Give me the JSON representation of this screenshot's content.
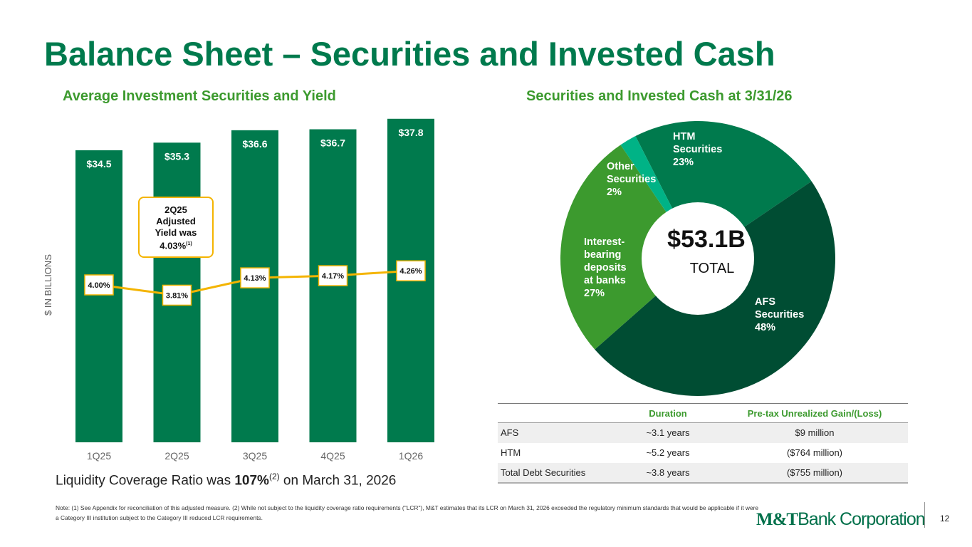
{
  "page": {
    "title": "Balance Sheet – Securities and Invested Cash",
    "left_subtitle": "Average Investment Securities and Yield",
    "right_subtitle": "Securities and Invested Cash at 3/31/26",
    "callout": {
      "line1": "2Q25",
      "line2": "Adjusted",
      "line3": "Yield was",
      "line4": "4.03%",
      "sup": "(1)"
    },
    "lcr": {
      "prefix": "Liquidity Coverage Ratio was ",
      "value": "107%",
      "sup": "(2)",
      "suffix": " on March 31, 2026"
    },
    "note": "Note: (1) See Appendix for reconciliation of this adjusted measure. (2) While not subject to the liquidity coverage ratio requirements (\"LCR\"), M&T estimates that its LCR on March 31, 2026 exceeded the regulatory minimum standards that would be applicable if it were a Category III institution subject to the Category III reduced LCR requirements.",
    "logo": {
      "part1": "M&T",
      "part2": "Bank Corporation"
    },
    "page_number": "12"
  },
  "colors": {
    "title": "#007a4d",
    "subtitle": "#3c9a2e",
    "bar": "#007a4d",
    "yield_line": "#f4b400",
    "afs": "#004d33",
    "interest_bearing": "#3c9a2e",
    "other": "#00b386",
    "htm": "#007a4d"
  },
  "table": {
    "headers": [
      "",
      "Duration",
      "Pre-tax Unrealized Gain/(Loss)"
    ],
    "rows": [
      [
        "AFS",
        "~3.1 years",
        "$9 million"
      ],
      [
        "HTM",
        "~5.2 years",
        "($764 million)"
      ],
      [
        "Total Debt Securities",
        "~3.8 years",
        "($755 million)"
      ]
    ]
  },
  "chart_data": [
    {
      "type": "bar",
      "title": "Average Investment Securities and Yield",
      "ylabel": "$ IN BILLIONS",
      "categories": [
        "1Q25",
        "2Q25",
        "3Q25",
        "4Q25",
        "1Q26"
      ],
      "series": [
        {
          "values": [
            34.5,
            35.3,
            36.6,
            36.7,
            37.8
          ],
          "labels": [
            "$34.5",
            "$35.3",
            "$36.6",
            "$36.7",
            "$37.8"
          ]
        },
        {
          "values": [
            4.0,
            3.81,
            4.13,
            4.17,
            4.26
          ],
          "labels": [
            "4.00%",
            "3.81%",
            "4.13%",
            "4.17%",
            "4.26%"
          ]
        }
      ],
      "grid": false
    },
    {
      "type": "pie",
      "title": "Securities and Invested Cash at 3/31/26",
      "total_value": "$53.1B",
      "total_label": "TOTAL",
      "slices": [
        {
          "name": "HTM Securities",
          "lines": [
            "HTM",
            "Securities",
            "23%"
          ],
          "value": 23
        },
        {
          "name": "AFS Securities",
          "lines": [
            "AFS",
            "Securities",
            "48%"
          ],
          "value": 48
        },
        {
          "name": "Interest-bearing deposits at banks",
          "lines": [
            "Interest-",
            "bearing",
            "deposits",
            "at banks",
            "27%"
          ],
          "value": 27
        },
        {
          "name": "Other Securities",
          "lines": [
            "Other",
            "Securities",
            "2%"
          ],
          "value": 2
        }
      ]
    }
  ]
}
